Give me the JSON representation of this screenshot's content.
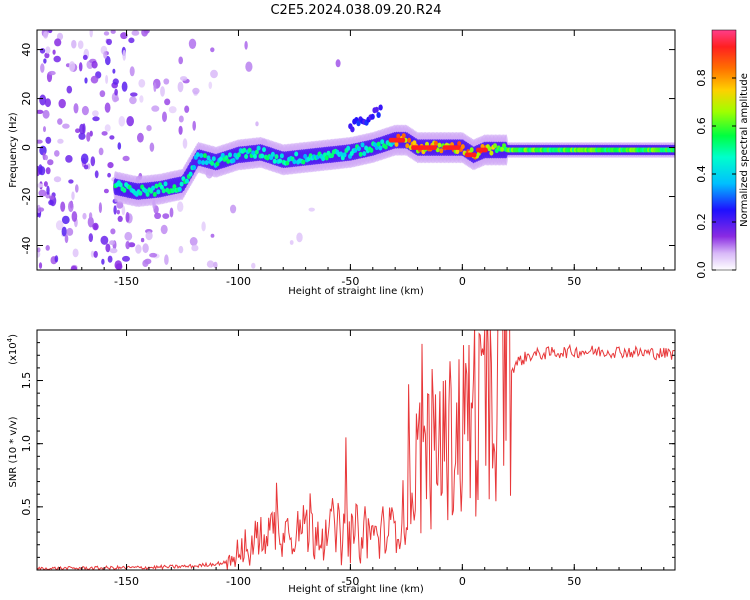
{
  "title": "C2E5.2024.038.09.20.R24",
  "colors": {
    "line": "#e8383a",
    "axis": "#000000"
  },
  "chart_data": [
    {
      "type": "heatmap",
      "name": "spectrogram",
      "xlabel": "Height of straight line (km)",
      "ylabel": "Frequency (Hz)",
      "xlim": [
        -190,
        95
      ],
      "ylim": [
        -50,
        48
      ],
      "xticks": [
        "-150",
        "-100",
        "-50",
        "0",
        "50"
      ],
      "xtick_values": [
        -150,
        -100,
        -50,
        0,
        50
      ],
      "yticks": [
        "-40",
        "-20",
        "0",
        "20",
        "40"
      ],
      "ytick_values": [
        -40,
        -20,
        0,
        20,
        40
      ],
      "colorbar": {
        "label": "Normalized spectral amplitude",
        "ticks": [
          "0.0",
          "0.2",
          "0.4",
          "0.6",
          "0.8"
        ],
        "tick_values": [
          0.0,
          0.2,
          0.4,
          0.6,
          0.8
        ],
        "range": [
          0,
          1
        ]
      },
      "ridge": {
        "x": [
          -155,
          -145,
          -135,
          -125,
          -118,
          -110,
          -100,
          -90,
          -80,
          -70,
          -60,
          -50,
          -40,
          -30,
          -25,
          -20,
          -10,
          0,
          5,
          10,
          20,
          40,
          60,
          80,
          95
        ],
        "y": [
          -16,
          -18,
          -17,
          -15,
          -4,
          -6,
          -3,
          -2,
          -5,
          -4,
          -3,
          -2,
          0,
          3,
          3,
          0,
          0,
          0,
          -3,
          -1,
          -1,
          -1,
          -1,
          -1,
          -1
        ]
      }
    },
    {
      "type": "line",
      "name": "snr",
      "xlabel": "Height of straight line (km)",
      "ylabel": "SNR (10 * v/v)",
      "yscale_label": "(x10",
      "yscale_exp": "4",
      "yscale_suffix": ")",
      "xlim": [
        -190,
        95
      ],
      "ylim": [
        0,
        1.9
      ],
      "xticks": [
        "-150",
        "-100",
        "-50",
        "0",
        "50"
      ],
      "xtick_values": [
        -150,
        -100,
        -50,
        0,
        50
      ],
      "yticks": [
        "0.5",
        "1.0",
        "1.5"
      ],
      "ytick_values": [
        0.5,
        1.0,
        1.5
      ],
      "envelope": {
        "x": [
          -190,
          -140,
          -120,
          -105,
          -97,
          -90,
          -80,
          -70,
          -60,
          -50,
          -40,
          -32,
          -28,
          -24,
          -20,
          -15,
          -10,
          -5,
          0,
          5,
          10,
          15,
          20,
          25,
          30,
          40,
          50,
          60,
          70,
          80,
          95
        ],
        "y": [
          0.01,
          0.02,
          0.03,
          0.06,
          0.15,
          0.28,
          0.35,
          0.36,
          0.34,
          0.3,
          0.28,
          0.3,
          0.4,
          0.55,
          0.85,
          0.95,
          1.0,
          1.05,
          1.15,
          1.25,
          1.35,
          1.45,
          1.55,
          1.65,
          1.7,
          1.72,
          1.73,
          1.73,
          1.73,
          1.72,
          1.71
        ]
      },
      "peaks": [
        {
          "x": -83,
          "y": 0.69
        },
        {
          "x": -52,
          "y": 1.05
        },
        {
          "x": -24,
          "y": 1.47
        },
        {
          "x": -18,
          "y": 1.79
        },
        {
          "x": -12,
          "y": 1.39
        },
        {
          "x": 2,
          "y": 1.55
        },
        {
          "x": 8,
          "y": 1.86
        },
        {
          "x": 10,
          "y": 1.9
        },
        {
          "x": 12,
          "y": 0.56
        }
      ]
    }
  ]
}
